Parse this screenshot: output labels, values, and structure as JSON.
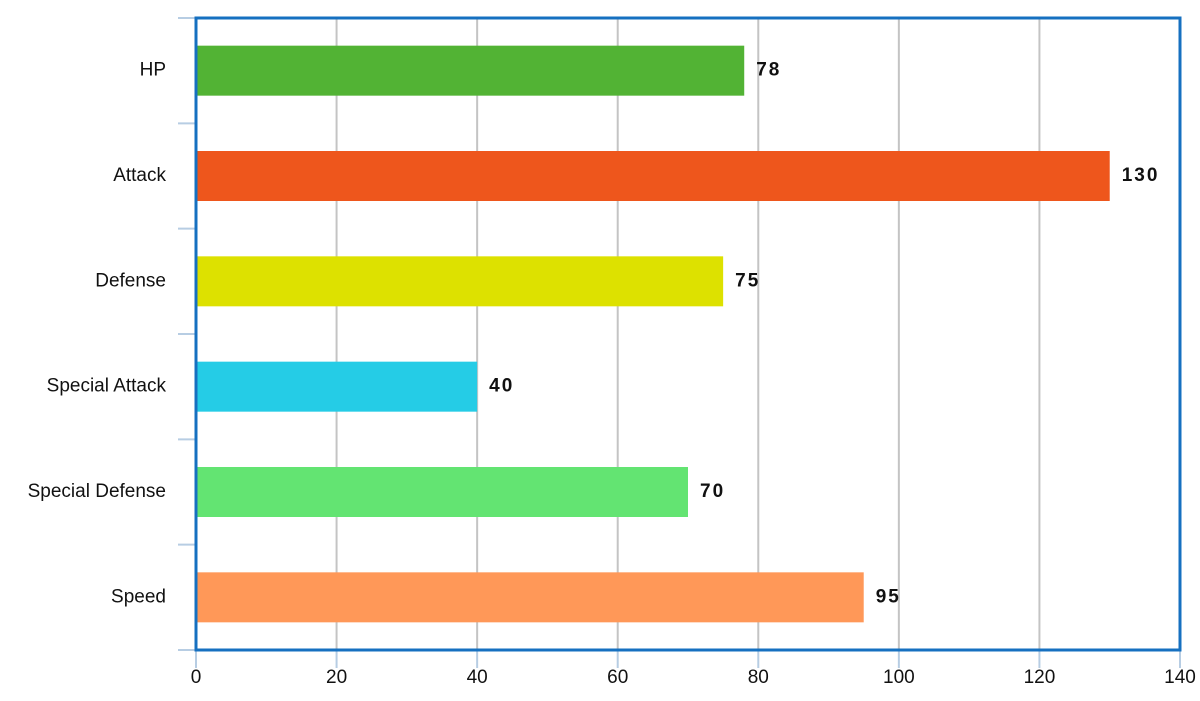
{
  "chart_data": {
    "type": "bar",
    "orientation": "horizontal",
    "categories": [
      "HP",
      "Attack",
      "Defense",
      "Special Attack",
      "Special Defense",
      "Speed"
    ],
    "values": [
      78,
      130,
      75,
      40,
      70,
      95
    ],
    "colors": [
      "#52b334",
      "#ee561c",
      "#dde100",
      "#25cce6",
      "#63e472",
      "#ff9858"
    ],
    "xlim": [
      0,
      140
    ],
    "xticks": [
      0,
      20,
      40,
      60,
      80,
      100,
      120,
      140
    ],
    "grid": true
  }
}
